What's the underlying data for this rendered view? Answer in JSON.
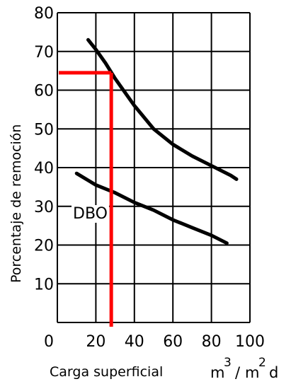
{
  "chart_data": {
    "type": "line",
    "xlabel": "Carga superficial",
    "xunit": {
      "base1": "m",
      "sup1": "3",
      "slash": "/",
      "base2": "m",
      "sup2": "2",
      "tail": "d"
    },
    "ylabel": "Porcentaje de remoción",
    "xlim": [
      0,
      100
    ],
    "ylim": [
      0,
      80
    ],
    "x_ticks": [
      "0",
      "20",
      "40",
      "60",
      "80",
      "100"
    ],
    "y_ticks": [
      "10",
      "20",
      "30",
      "40",
      "50",
      "60",
      "70",
      "80"
    ],
    "grid": true,
    "series": [
      {
        "color": "#000000",
        "x": [
          16,
          20,
          25,
          30,
          40,
          50,
          60,
          70,
          80,
          90,
          93
        ],
        "y": [
          73,
          70.5,
          67,
          63,
          56,
          50,
          46,
          43,
          40.5,
          38,
          37
        ]
      },
      {
        "name": "DBO",
        "color": "#000000",
        "x": [
          10,
          20,
          30,
          40,
          50,
          60,
          70,
          80,
          88
        ],
        "y": [
          38.5,
          35.5,
          33.5,
          31,
          29,
          26.5,
          24.5,
          22.5,
          20.5
        ]
      }
    ],
    "annotation": {
      "color": "#ff0000",
      "x": 28,
      "y": 64.5
    }
  }
}
